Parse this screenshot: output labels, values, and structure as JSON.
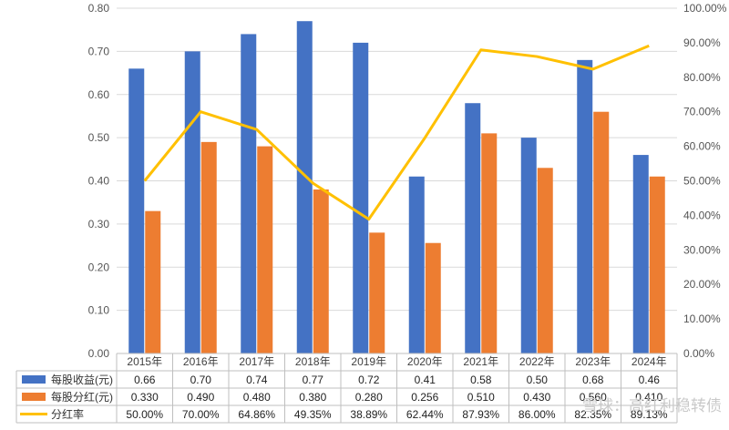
{
  "chart_data": {
    "type": "bar+line",
    "categories": [
      "2015年",
      "2016年",
      "2017年",
      "2018年",
      "2019年",
      "2020年",
      "2021年",
      "2022年",
      "2023年",
      "2024年"
    ],
    "series": [
      {
        "name": "每股收益(元)",
        "type": "bar",
        "axis": "left",
        "color": "#4472C4",
        "values": [
          0.66,
          0.7,
          0.74,
          0.77,
          0.72,
          0.41,
          0.58,
          0.5,
          0.68,
          0.46
        ],
        "labels": [
          "0.66",
          "0.70",
          "0.74",
          "0.77",
          "0.72",
          "0.41",
          "0.58",
          "0.50",
          "0.68",
          "0.46"
        ]
      },
      {
        "name": "每股分红(元)",
        "type": "bar",
        "axis": "left",
        "color": "#ED7D31",
        "values": [
          0.33,
          0.49,
          0.48,
          0.38,
          0.28,
          0.256,
          0.51,
          0.43,
          0.56,
          0.41
        ],
        "labels": [
          "0.330",
          "0.490",
          "0.480",
          "0.380",
          "0.280",
          "0.256",
          "0.510",
          "0.430",
          "0.560",
          "0.410"
        ]
      },
      {
        "name": "分红率",
        "type": "line",
        "axis": "right",
        "color": "#FFC000",
        "values": [
          50.0,
          70.0,
          64.86,
          49.35,
          38.89,
          62.44,
          87.93,
          86.0,
          82.35,
          89.13
        ],
        "labels": [
          "50.00%",
          "70.00%",
          "64.86%",
          "49.35%",
          "38.89%",
          "62.44%",
          "87.93%",
          "86.00%",
          "82.35%",
          "89.13%"
        ]
      }
    ],
    "y_left": {
      "min": 0,
      "max": 0.8,
      "ticks": [
        "0.00",
        "0.10",
        "0.20",
        "0.30",
        "0.40",
        "0.50",
        "0.60",
        "0.70",
        "0.80"
      ]
    },
    "y_right": {
      "min": 0,
      "max": 100,
      "ticks": [
        "0.00%",
        "10.00%",
        "20.00%",
        "30.00%",
        "40.00%",
        "50.00%",
        "60.00%",
        "70.00%",
        "80.00%",
        "90.00%",
        "100.00%"
      ]
    },
    "grid": true,
    "legend": "data-table-bottom",
    "watermark": "雪球：高红利稳转债"
  }
}
